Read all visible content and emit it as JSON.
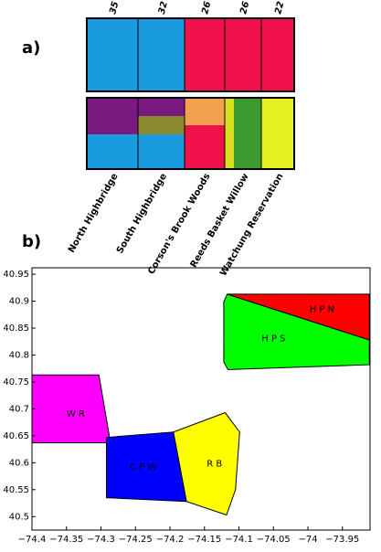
{
  "panel_a": {
    "label": "a)",
    "populations": [
      {
        "name": "North Highbridge",
        "n": 35
      },
      {
        "name": "South  Highbridge",
        "n": 32
      },
      {
        "name": "Corson's Brook Woods",
        "n": 26
      },
      {
        "name": "Reeds Basket Willow",
        "n": 26
      },
      {
        "name": "Watchung Reservation",
        "n": 22
      }
    ]
  },
  "chart_data": {
    "type": "polygon",
    "panel_label": "b)",
    "xlim": [
      -74.4,
      -73.91
    ],
    "ylim": [
      40.475,
      40.962
    ],
    "xticks": [
      {
        "value": -74.4,
        "label": "−74.4"
      },
      {
        "value": -74.35,
        "label": "−74.35"
      },
      {
        "value": -74.3,
        "label": "−74.3"
      },
      {
        "value": -74.25,
        "label": "−74.25"
      },
      {
        "value": -74.2,
        "label": "−74.2"
      },
      {
        "value": -74.15,
        "label": "−74.15"
      },
      {
        "value": -74.1,
        "label": "−74.1"
      },
      {
        "value": -74.05,
        "label": "−74.05"
      },
      {
        "value": -74,
        "label": "−74"
      },
      {
        "value": -73.95,
        "label": "−73.95"
      }
    ],
    "yticks": [
      40.5,
      40.55,
      40.6,
      40.65,
      40.7,
      40.75,
      40.8,
      40.85,
      40.9,
      40.95
    ],
    "regions": [
      {
        "name": "W R",
        "color": "#ff00ff",
        "x": [
          -74.4,
          -74.303,
          -74.288,
          -74.292,
          -74.4
        ],
        "y": [
          40.763,
          40.763,
          40.651,
          40.637,
          40.637
        ]
      },
      {
        "name": "C P W",
        "color": "#0000ff",
        "x": [
          -74.292,
          -74.195,
          -74.176,
          -74.292
        ],
        "y": [
          40.647,
          40.657,
          40.528,
          40.535
        ]
      },
      {
        "name": "R B",
        "color": "#ffff00",
        "x": [
          -74.195,
          -74.12,
          -74.099,
          -74.105,
          -74.118,
          -74.176
        ],
        "y": [
          40.657,
          40.693,
          40.657,
          40.55,
          40.503,
          40.528
        ]
      },
      {
        "name": "H P S",
        "color": "#00ff00",
        "x": [
          -74.117,
          -73.911,
          -73.911,
          -74.116,
          -74.122,
          -74.122
        ],
        "y": [
          40.913,
          40.828,
          40.782,
          40.773,
          40.787,
          40.899
        ]
      },
      {
        "name": "H P N",
        "color": "#ff0000",
        "x": [
          -74.117,
          -73.911,
          -73.911
        ],
        "y": [
          40.913,
          40.913,
          40.828
        ]
      }
    ]
  }
}
